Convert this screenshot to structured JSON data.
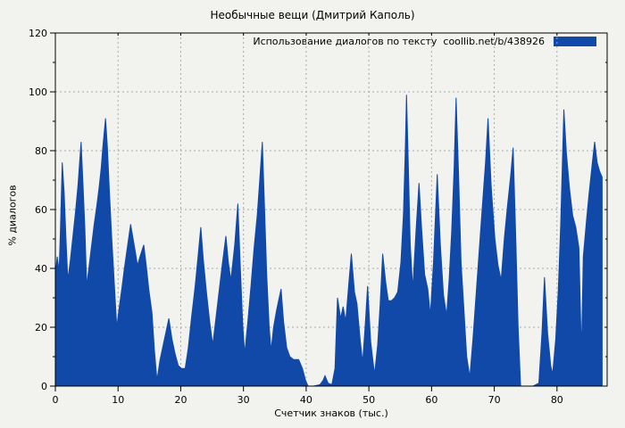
{
  "title": "Необычные вещи (Дмитрий Каполь)",
  "legend": {
    "label": "Использование диалогов по тексту  coollib.net/b/438926"
  },
  "axes": {
    "x": {
      "label": "Счетчик знаков (тыс.)",
      "ticks": [
        "0",
        "10",
        "20",
        "30",
        "40",
        "50",
        "60",
        "70",
        "80"
      ]
    },
    "y": {
      "label": "% диалогов",
      "ticks": [
        "0",
        "20",
        "40",
        "60",
        "80",
        "100",
        "120"
      ]
    }
  },
  "colors": {
    "fill": "#1149a8",
    "background": "#f2f2ef",
    "grid": "#a9a9a9",
    "axis": "#000000"
  },
  "chart_data": {
    "type": "area",
    "title": "Необычные вещи (Дмитрий Каполь)",
    "xlabel": "Счетчик знаков (тыс.)",
    "ylabel": "% диалогов",
    "legend": [
      "Использование диалогов по тексту  coollib.net/b/438926"
    ],
    "legend_position": "top-right",
    "grid": true,
    "xlim": [
      0,
      88
    ],
    "ylim": [
      0,
      120
    ],
    "xticks": [
      0,
      10,
      20,
      30,
      40,
      50,
      60,
      70,
      80
    ],
    "yticks": [
      0,
      20,
      40,
      60,
      80,
      100,
      120
    ],
    "yticks_minor_step": 10,
    "x": [
      0,
      0.3,
      0.6,
      0.8,
      1.1,
      1.4,
      1.7,
      2.0,
      2.4,
      2.8,
      3.2,
      3.6,
      3.9,
      4.1,
      4.4,
      4.7,
      5.0,
      5.4,
      5.8,
      6.2,
      6.6,
      7.0,
      7.3,
      7.6,
      8.0,
      8.3,
      8.6,
      9.0,
      9.4,
      9.8,
      10.2,
      10.6,
      11.0,
      11.4,
      12.0,
      12.4,
      12.8,
      13.1,
      13.5,
      14.1,
      14.5,
      14.9,
      15.4,
      15.8,
      16.2,
      16.7,
      17.2,
      17.7,
      18.1,
      18.6,
      19.1,
      19.6,
      20.1,
      20.7,
      21.2,
      21.7,
      22.3,
      22.8,
      23.2,
      23.6,
      24.1,
      24.6,
      25.1,
      25.6,
      26.1,
      26.6,
      27.2,
      27.6,
      28.0,
      28.6,
      29.1,
      29.5,
      29.9,
      30.2,
      30.7,
      31.2,
      31.7,
      32.2,
      32.6,
      33.0,
      33.3,
      33.7,
      34.1,
      34.4,
      34.8,
      35.3,
      36.0,
      36.4,
      36.9,
      37.4,
      38.0,
      38.8,
      39.4,
      39.9,
      40.3,
      41.2,
      42.2,
      42.7,
      43.0,
      43.5,
      44.1,
      44.6,
      45.0,
      45.5,
      45.9,
      46.3,
      46.8,
      47.2,
      47.7,
      48.1,
      48.6,
      49.0,
      49.4,
      49.8,
      50.3,
      50.9,
      51.4,
      51.8,
      52.2,
      52.7,
      53.1,
      53.6,
      54.1,
      54.6,
      55.1,
      55.5,
      55.8,
      56.0,
      56.3,
      56.6,
      57.0,
      57.5,
      58.0,
      58.4,
      58.9,
      59.4,
      59.8,
      60.3,
      60.9,
      61.4,
      61.9,
      62.4,
      62.8,
      63.2,
      63.6,
      63.9,
      64.3,
      64.7,
      65.1,
      65.6,
      66.1,
      66.6,
      67.1,
      67.6,
      68.1,
      68.6,
      69.0,
      69.5,
      70.1,
      70.6,
      71.1,
      71.6,
      72.1,
      72.6,
      73.0,
      73.4,
      73.8,
      74.2,
      75.2,
      76.2,
      77.1,
      77.6,
      78.0,
      78.5,
      79.0,
      79.3,
      79.8,
      80.2,
      80.6,
      81.1,
      81.5,
      82.0,
      82.5,
      83.0,
      83.5,
      83.9,
      84.2,
      84.7,
      85.1,
      85.6,
      86.0,
      86.4,
      86.8,
      87.2
    ],
    "y": [
      38,
      44,
      39,
      52,
      76,
      66,
      50,
      36,
      43,
      51,
      59,
      68,
      77,
      83,
      69,
      54,
      34,
      41,
      48,
      55,
      61,
      68,
      74,
      82,
      91,
      81,
      67,
      50,
      35,
      20,
      27,
      33,
      40,
      46,
      55,
      50,
      45,
      41,
      44,
      48,
      41,
      33,
      25,
      12,
      2,
      9,
      14,
      19,
      23,
      16,
      11,
      7,
      6,
      6,
      13,
      23,
      34,
      45,
      54,
      43,
      32,
      22,
      14,
      23,
      32,
      41,
      51,
      42,
      36,
      48,
      62,
      40,
      20,
      11,
      22,
      34,
      47,
      58,
      70,
      83,
      64,
      38,
      20,
      12,
      20,
      26,
      33,
      22,
      13,
      10,
      9,
      9,
      6,
      2,
      0,
      0,
      0.5,
      2,
      3.5,
      1,
      0.5,
      6,
      30,
      23,
      27,
      22,
      35,
      45,
      32,
      28,
      16,
      8,
      20,
      34,
      15,
      4,
      14,
      28,
      45,
      35,
      29,
      29,
      30,
      32,
      42,
      58,
      80,
      99,
      74,
      48,
      33,
      52,
      69,
      54,
      38,
      33,
      24,
      42,
      72,
      48,
      31,
      24,
      36,
      52,
      74,
      98,
      72,
      42,
      28,
      10,
      3,
      16,
      31,
      46,
      61,
      76,
      91,
      68,
      50,
      41,
      36,
      50,
      61,
      71,
      81,
      52,
      20,
      0,
      0,
      0,
      1,
      18,
      37,
      18,
      7,
      4,
      16,
      32,
      55,
      94,
      79,
      67,
      58,
      54,
      47,
      11,
      44,
      56,
      65,
      75,
      83,
      76,
      73,
      71
    ]
  }
}
